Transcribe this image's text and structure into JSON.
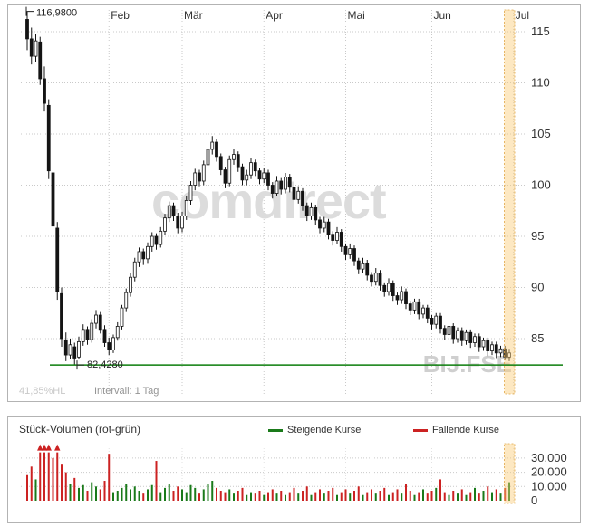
{
  "colors": {
    "grid": "#c9c9c9",
    "grid_light": "#e2e2e2",
    "candle": "#141414",
    "support_line": "#0b7d0b",
    "volume_up": "#1a7a1a",
    "volume_down": "#cc2222",
    "band_fill": "rgba(250,205,120,0.45)",
    "band_edge": "#e0a645"
  },
  "price_panel": {
    "high_label": "116,9800",
    "support_label": "82,4280",
    "footer_left": "41,85%HL",
    "footer_right": "Intervall: 1 Tag",
    "watermark": "comdirect",
    "symbol": "BIJ.FSE"
  },
  "volume_panel": {
    "title": "Stück-Volumen (rot-grün)",
    "legend": [
      {
        "label": "Steigende Kurse",
        "color": "#1a7a1a"
      },
      {
        "label": "Fallende Kurse",
        "color": "#cc2222"
      }
    ]
  },
  "chart_data": [
    {
      "type": "candlestick",
      "symbol": "BIJ.FSE",
      "interval": "1 Tag",
      "months": [
        "Feb",
        "Mär",
        "Apr",
        "Mai",
        "Jun",
        "Jul"
      ],
      "month_start_days": [
        19,
        36,
        55,
        74,
        94,
        113
      ],
      "y_ticks": [
        115,
        110,
        105,
        100,
        95,
        90,
        85
      ],
      "ylim": [
        82,
        117.5
      ],
      "high_marker": 116.98,
      "support_line": 82.428,
      "grid": "dotted",
      "candles": [
        [
          116.2,
          116.98,
          113.2,
          114.3
        ],
        [
          114.3,
          115.4,
          111.8,
          112.6
        ],
        [
          112.6,
          114.8,
          112.0,
          114.1
        ],
        [
          114.0,
          114.5,
          109.8,
          110.4
        ],
        [
          110.4,
          111.6,
          107.2,
          108.0
        ],
        [
          107.8,
          108.4,
          100.6,
          101.4
        ],
        [
          101.2,
          102.8,
          95.2,
          96.0
        ],
        [
          95.8,
          96.4,
          88.8,
          89.6
        ],
        [
          89.4,
          90.0,
          84.2,
          85.0
        ],
        [
          84.8,
          85.6,
          82.8,
          83.4
        ],
        [
          83.4,
          85.0,
          83.0,
          84.4
        ],
        [
          84.2,
          84.6,
          82.43,
          83.1
        ],
        [
          83.2,
          85.2,
          83.0,
          84.7
        ],
        [
          84.7,
          86.4,
          84.3,
          85.9
        ],
        [
          85.9,
          86.2,
          84.4,
          84.9
        ],
        [
          84.9,
          86.9,
          84.6,
          86.5
        ],
        [
          86.5,
          87.8,
          86.0,
          87.3
        ],
        [
          87.3,
          87.6,
          85.5,
          85.9
        ],
        [
          85.9,
          86.3,
          84.2,
          84.6
        ],
        [
          84.6,
          85.1,
          83.4,
          83.9
        ],
        [
          83.9,
          85.4,
          83.6,
          85.1
        ],
        [
          85.1,
          86.6,
          84.8,
          86.2
        ],
        [
          86.2,
          88.3,
          85.9,
          88.0
        ],
        [
          88.0,
          89.9,
          87.6,
          89.5
        ],
        [
          89.5,
          91.4,
          89.1,
          91.0
        ],
        [
          91.0,
          92.9,
          90.6,
          92.5
        ],
        [
          92.5,
          93.9,
          92.0,
          93.5
        ],
        [
          93.5,
          93.8,
          92.2,
          92.8
        ],
        [
          92.8,
          94.4,
          92.4,
          94.0
        ],
        [
          94.0,
          95.4,
          93.5,
          95.0
        ],
        [
          95.0,
          95.3,
          93.7,
          94.2
        ],
        [
          94.2,
          95.9,
          93.9,
          95.5
        ],
        [
          95.5,
          97.2,
          95.1,
          96.8
        ],
        [
          96.8,
          98.4,
          96.4,
          98.0
        ],
        [
          98.0,
          98.3,
          96.5,
          97.0
        ],
        [
          97.0,
          97.3,
          95.3,
          95.8
        ],
        [
          95.8,
          97.4,
          95.4,
          97.0
        ],
        [
          97.0,
          98.9,
          96.6,
          98.5
        ],
        [
          98.5,
          100.4,
          98.1,
          100.0
        ],
        [
          100.0,
          101.6,
          99.5,
          101.2
        ],
        [
          101.2,
          101.5,
          99.9,
          100.4
        ],
        [
          100.4,
          102.4,
          100.0,
          102.0
        ],
        [
          102.0,
          103.9,
          101.6,
          103.5
        ],
        [
          103.5,
          104.8,
          103.0,
          104.2
        ],
        [
          104.2,
          104.5,
          102.3,
          102.8
        ],
        [
          102.8,
          103.1,
          101.0,
          101.5
        ],
        [
          101.5,
          101.8,
          99.7,
          100.2
        ],
        [
          100.2,
          102.9,
          99.9,
          102.5
        ],
        [
          102.5,
          103.5,
          102.0,
          103.0
        ],
        [
          103.0,
          103.3,
          101.3,
          101.8
        ],
        [
          101.8,
          102.1,
          100.0,
          100.5
        ],
        [
          100.5,
          101.5,
          100.0,
          101.0
        ],
        [
          101.0,
          102.7,
          100.6,
          102.2
        ],
        [
          102.2,
          102.5,
          100.9,
          101.4
        ],
        [
          101.4,
          101.7,
          100.1,
          100.6
        ],
        [
          100.6,
          101.7,
          100.2,
          101.2
        ],
        [
          101.2,
          101.5,
          99.5,
          100.0
        ],
        [
          100.0,
          100.3,
          98.7,
          99.2
        ],
        [
          99.2,
          100.9,
          98.9,
          100.4
        ],
        [
          100.4,
          100.7,
          99.1,
          99.6
        ],
        [
          99.6,
          101.2,
          99.2,
          100.8
        ],
        [
          100.8,
          101.1,
          99.3,
          99.8
        ],
        [
          99.8,
          100.1,
          98.1,
          98.6
        ],
        [
          98.6,
          99.9,
          98.2,
          99.4
        ],
        [
          99.4,
          99.7,
          97.5,
          98.0
        ],
        [
          98.0,
          98.3,
          96.5,
          97.0
        ],
        [
          97.0,
          98.3,
          96.6,
          97.8
        ],
        [
          97.8,
          98.1,
          96.1,
          96.6
        ],
        [
          96.6,
          96.9,
          95.3,
          95.8
        ],
        [
          95.8,
          96.9,
          95.4,
          96.4
        ],
        [
          96.4,
          96.7,
          94.7,
          95.2
        ],
        [
          95.2,
          95.5,
          94.1,
          94.6
        ],
        [
          94.6,
          95.9,
          94.2,
          95.4
        ],
        [
          95.4,
          95.7,
          93.5,
          94.0
        ],
        [
          94.0,
          94.3,
          92.7,
          93.2
        ],
        [
          93.2,
          94.3,
          92.8,
          93.8
        ],
        [
          93.8,
          94.1,
          92.1,
          92.6
        ],
        [
          92.6,
          92.9,
          91.3,
          91.8
        ],
        [
          91.8,
          92.9,
          91.4,
          92.4
        ],
        [
          92.4,
          92.7,
          90.7,
          91.2
        ],
        [
          91.2,
          91.5,
          90.1,
          90.6
        ],
        [
          90.6,
          91.9,
          90.2,
          91.4
        ],
        [
          91.4,
          91.7,
          89.7,
          90.2
        ],
        [
          90.2,
          90.5,
          89.1,
          89.6
        ],
        [
          89.6,
          90.9,
          89.2,
          90.4
        ],
        [
          90.4,
          90.7,
          88.7,
          89.2
        ],
        [
          89.2,
          89.5,
          88.3,
          88.8
        ],
        [
          88.8,
          90.1,
          88.4,
          89.6
        ],
        [
          89.6,
          89.9,
          87.9,
          88.4
        ],
        [
          88.4,
          88.7,
          87.3,
          87.8
        ],
        [
          87.8,
          88.9,
          87.4,
          88.6
        ],
        [
          88.6,
          88.9,
          86.9,
          87.4
        ],
        [
          87.4,
          88.3,
          87.0,
          88.0
        ],
        [
          88.0,
          88.3,
          86.5,
          87.0
        ],
        [
          87.0,
          87.3,
          85.9,
          86.4
        ],
        [
          86.4,
          87.5,
          86.0,
          87.2
        ],
        [
          87.2,
          87.5,
          85.5,
          86.0
        ],
        [
          86.0,
          86.3,
          84.9,
          85.4
        ],
        [
          85.4,
          86.5,
          85.0,
          86.2
        ],
        [
          86.2,
          86.5,
          84.5,
          85.0
        ],
        [
          85.0,
          86.1,
          84.6,
          85.8
        ],
        [
          85.8,
          86.1,
          84.3,
          84.8
        ],
        [
          84.8,
          85.9,
          84.4,
          85.6
        ],
        [
          85.6,
          85.9,
          84.1,
          84.6
        ],
        [
          84.6,
          85.5,
          84.2,
          85.2
        ],
        [
          85.2,
          85.5,
          83.7,
          84.2
        ],
        [
          84.2,
          85.1,
          83.8,
          84.8
        ],
        [
          84.8,
          85.1,
          83.3,
          83.8
        ],
        [
          83.8,
          84.7,
          83.4,
          84.4
        ],
        [
          84.4,
          84.7,
          83.1,
          83.6
        ],
        [
          83.6,
          84.3,
          83.2,
          84.0
        ],
        [
          84.0,
          84.3,
          82.9,
          83.2
        ],
        [
          83.2,
          84.0,
          82.8,
          83.6
        ]
      ]
    },
    {
      "type": "bar",
      "title": "Stück-Volumen (rot-grün)",
      "y_ticks": [
        {
          "label": "30.000",
          "value": 30000
        },
        {
          "label": "20.000",
          "value": 20000
        },
        {
          "label": "10.000",
          "value": 10000
        },
        {
          "label": "0",
          "value": 0
        }
      ],
      "ylim": [
        0,
        36000
      ],
      "clip_threshold": 36000,
      "clip_display": 34000,
      "values": [
        18000,
        24000,
        15000,
        40000,
        40000,
        40000,
        30000,
        40000,
        26000,
        20000,
        12000,
        16000,
        9000,
        11000,
        7000,
        13000,
        10000,
        8000,
        14000,
        33000,
        6000,
        7000,
        9000,
        12000,
        8000,
        10000,
        7000,
        5000,
        8000,
        11000,
        28000,
        6000,
        9000,
        12000,
        7000,
        10000,
        8000,
        6000,
        11000,
        9000,
        5000,
        8000,
        12000,
        14000,
        9000,
        7000,
        6000,
        8000,
        5000,
        7000,
        9000,
        4000,
        6000,
        5000,
        7000,
        4000,
        6000,
        8000,
        5000,
        7000,
        4000,
        6000,
        9000,
        5000,
        7000,
        10000,
        4000,
        6000,
        8000,
        5000,
        7000,
        9000,
        4000,
        6000,
        8000,
        5000,
        7000,
        10000,
        4000,
        6000,
        8000,
        5000,
        7000,
        9000,
        4000,
        6000,
        8000,
        5000,
        12000,
        7000,
        4000,
        6000,
        8000,
        5000,
        7000,
        9000,
        15000,
        6000,
        4000,
        7000,
        5000,
        8000,
        4000,
        6000,
        9000,
        5000,
        7000,
        10000,
        6000,
        8000,
        5000,
        9000,
        13000
      ]
    }
  ]
}
